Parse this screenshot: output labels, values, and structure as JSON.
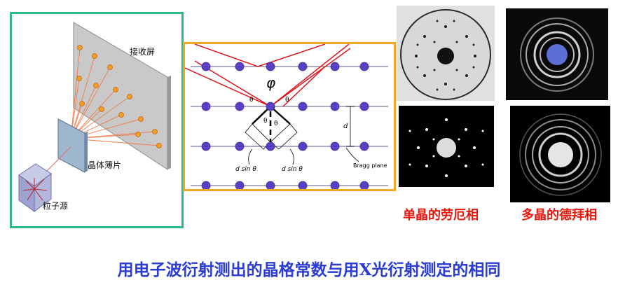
{
  "left_panel": {
    "screen_label": "接收屏",
    "film_label": "晶体薄片",
    "source_label": "粒子源"
  },
  "middle_panel": {
    "phi_symbol": "φ",
    "theta_symbol": "θ",
    "d_label": "d",
    "dsin_left": "d sin θ",
    "dsin_right": "d sin θ",
    "bragg_label": "Bragg plane"
  },
  "captions": {
    "single_crystal": "单晶的劳厄相",
    "polycrystal": "多晶的德拜相"
  },
  "conclusion": "用电子波衍射测出的晶格常数与用X光衍射测定的相同",
  "colors": {
    "left_border": "#2db889",
    "middle_border": "#f5a623",
    "caption": "#e8160c",
    "conclusion": "#2a3cd4",
    "ray": "#e0151b",
    "atom": "#5b3fc4"
  }
}
